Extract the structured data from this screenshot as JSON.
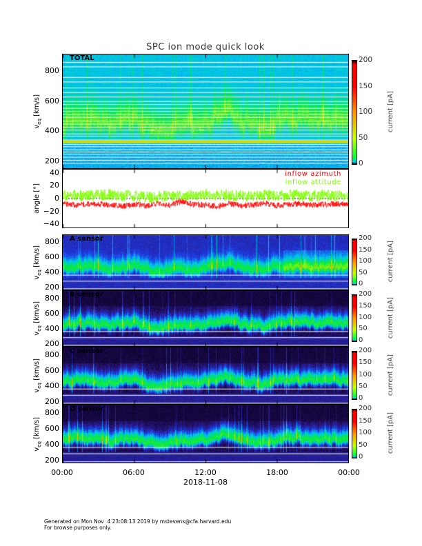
{
  "title": "SPC ion mode quick look",
  "x_axis": {
    "ticks": [
      "00:00",
      "06:00",
      "12:00",
      "18:00",
      "00:00"
    ],
    "date": "2018-11-08"
  },
  "footer": {
    "line1": "Generated on Mon Nov  4 23:08:13 2019 by mstevens@cfa.harvard.edu",
    "line2": "For browse purposes only."
  },
  "chart_data": [
    {
      "type": "heatmap",
      "panel": "total",
      "label": "TOTAL",
      "ylabel": "v_eq [km/s]",
      "ylabel_main": "v",
      "ylabel_sub": "eq",
      "ylabel_unit": "[km/s]",
      "yticks": [
        "200",
        "400",
        "600",
        "800"
      ],
      "ylim": [
        155,
        910
      ],
      "xlim_hours": [
        0,
        24
      ],
      "colorbar": {
        "label": "current [pA]",
        "ticks": [
          "0",
          "50",
          "100",
          "150",
          "200"
        ],
        "range": [
          0,
          200
        ]
      },
      "style": "total"
    },
    {
      "type": "line",
      "panel": "angle",
      "ylabel": "angle [°]",
      "yticks": [
        "−40",
        "−20",
        "0",
        "20",
        "40"
      ],
      "ylim": [
        -45,
        45
      ],
      "xlim_hours": [
        0,
        24
      ],
      "series": [
        {
          "name": "inflow azimuth",
          "color": "#ff0000",
          "hourly": [
            -8,
            -10,
            -9,
            -8,
            -10,
            -12,
            -9,
            -11,
            -8,
            -10,
            -4,
            -9,
            -10,
            -12,
            -8,
            -11,
            -10,
            -7,
            -11,
            -9,
            -8,
            -10,
            -9,
            -8,
            -9
          ]
        },
        {
          "name": "inflow attitude",
          "color": "#7fff00",
          "hourly": [
            5,
            6,
            4,
            5,
            6,
            5,
            4,
            2,
            3,
            4,
            6,
            5,
            6,
            7,
            5,
            4,
            3,
            5,
            4,
            6,
            5,
            4,
            5,
            4,
            3
          ]
        }
      ]
    },
    {
      "type": "heatmap",
      "panel": "a",
      "label": "A sensor",
      "ylabel": "v_eq [km/s]",
      "ylabel_main": "v",
      "ylabel_sub": "eq",
      "ylabel_unit": "[km/s]",
      "yticks": [
        "200",
        "400",
        "600",
        "800"
      ],
      "ylim": [
        175,
        895
      ],
      "xlim_hours": [
        0,
        24
      ],
      "colorbar": {
        "label": "current [pA]",
        "ticks": [
          "0",
          "50",
          "100",
          "150",
          "200"
        ],
        "range": [
          0,
          200
        ]
      },
      "style": "a"
    },
    {
      "type": "heatmap",
      "panel": "b",
      "label": "B sensor",
      "ylabel": "v_eq [km/s]",
      "ylabel_main": "v",
      "ylabel_sub": "eq",
      "ylabel_unit": "[km/s]",
      "yticks": [
        "200",
        "400",
        "600",
        "800"
      ],
      "ylim": [
        175,
        895
      ],
      "xlim_hours": [
        0,
        24
      ],
      "colorbar": {
        "label": "current [pA]",
        "ticks": [
          "0",
          "50",
          "100",
          "150",
          "200"
        ],
        "range": [
          0,
          200
        ]
      },
      "style": "b"
    },
    {
      "type": "heatmap",
      "panel": "c",
      "label": "C sensor",
      "ylabel": "v_eq [km/s]",
      "ylabel_main": "v",
      "ylabel_sub": "eq",
      "ylabel_unit": "[km/s]",
      "yticks": [
        "200",
        "400",
        "600",
        "800"
      ],
      "ylim": [
        175,
        895
      ],
      "xlim_hours": [
        0,
        24
      ],
      "colorbar": {
        "label": "current [pA]",
        "ticks": [
          "0",
          "50",
          "100",
          "150",
          "200"
        ],
        "range": [
          0,
          200
        ]
      },
      "style": "c"
    },
    {
      "type": "heatmap",
      "panel": "d",
      "label": "D sensor",
      "ylabel": "v_eq [km/s]",
      "ylabel_main": "v",
      "ylabel_sub": "eq",
      "ylabel_unit": "[km/s]",
      "yticks": [
        "200",
        "400",
        "600",
        "800"
      ],
      "ylim": [
        175,
        895
      ],
      "xlim_hours": [
        0,
        24
      ],
      "colorbar": {
        "label": "current [pA]",
        "ticks": [
          "0",
          "50",
          "100",
          "150",
          "200"
        ],
        "range": [
          0,
          200
        ]
      },
      "style": "d"
    }
  ],
  "core_speed_hourly": [
    450,
    470,
    470,
    460,
    440,
    470,
    480,
    420,
    400,
    420,
    440,
    440,
    450,
    490,
    520,
    450,
    440,
    420,
    470,
    480,
    480,
    480,
    480,
    470,
    470
  ]
}
